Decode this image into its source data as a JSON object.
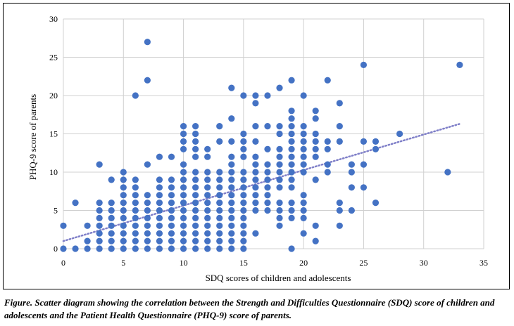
{
  "chart_data": {
    "type": "scatter",
    "xlabel": "SDQ scores of children and adolescents",
    "ylabel": "PHQ-9 score of parents",
    "xlim": [
      0,
      35
    ],
    "ylim": [
      0,
      30
    ],
    "xticks": [
      0,
      5,
      10,
      15,
      20,
      25,
      30,
      35
    ],
    "yticks": [
      0,
      5,
      10,
      15,
      20,
      25,
      30
    ],
    "grid": true,
    "legend": "none",
    "point_color": "#4472C4",
    "trendline": {
      "style": "dotted",
      "color": "#7F7FC8",
      "x": [
        0,
        33
      ],
      "y": [
        1.0,
        16.3
      ]
    },
    "series": [
      {
        "points": [
          [
            0,
            0
          ],
          [
            0,
            3
          ],
          [
            1,
            0
          ],
          [
            1,
            6
          ],
          [
            2,
            0
          ],
          [
            2,
            1
          ],
          [
            2,
            3
          ],
          [
            3,
            0
          ],
          [
            3,
            1
          ],
          [
            3,
            2
          ],
          [
            3,
            3
          ],
          [
            3,
            4
          ],
          [
            3,
            5
          ],
          [
            3,
            6
          ],
          [
            3,
            11
          ],
          [
            4,
            0
          ],
          [
            4,
            1
          ],
          [
            4,
            2
          ],
          [
            4,
            3
          ],
          [
            4,
            4
          ],
          [
            4,
            5
          ],
          [
            4,
            6
          ],
          [
            4,
            9
          ],
          [
            5,
            0
          ],
          [
            5,
            1
          ],
          [
            5,
            2
          ],
          [
            5,
            3
          ],
          [
            5,
            4
          ],
          [
            5,
            5
          ],
          [
            5,
            6
          ],
          [
            5,
            7
          ],
          [
            5,
            8
          ],
          [
            5,
            9
          ],
          [
            5,
            10
          ],
          [
            6,
            0
          ],
          [
            6,
            1
          ],
          [
            6,
            2
          ],
          [
            6,
            3
          ],
          [
            6,
            4
          ],
          [
            6,
            5
          ],
          [
            6,
            6
          ],
          [
            6,
            7
          ],
          [
            6,
            8
          ],
          [
            6,
            9
          ],
          [
            6,
            20
          ],
          [
            7,
            0
          ],
          [
            7,
            1
          ],
          [
            7,
            2
          ],
          [
            7,
            3
          ],
          [
            7,
            4
          ],
          [
            7,
            5
          ],
          [
            7,
            6
          ],
          [
            7,
            7
          ],
          [
            7,
            11
          ],
          [
            7,
            22
          ],
          [
            7,
            27
          ],
          [
            8,
            0
          ],
          [
            8,
            1
          ],
          [
            8,
            2
          ],
          [
            8,
            3
          ],
          [
            8,
            4
          ],
          [
            8,
            5
          ],
          [
            8,
            6
          ],
          [
            8,
            7
          ],
          [
            8,
            8
          ],
          [
            8,
            9
          ],
          [
            8,
            12
          ],
          [
            9,
            0
          ],
          [
            9,
            1
          ],
          [
            9,
            2
          ],
          [
            9,
            3
          ],
          [
            9,
            4
          ],
          [
            9,
            5
          ],
          [
            9,
            6
          ],
          [
            9,
            7
          ],
          [
            9,
            8
          ],
          [
            9,
            9
          ],
          [
            9,
            12
          ],
          [
            10,
            0
          ],
          [
            10,
            1
          ],
          [
            10,
            2
          ],
          [
            10,
            3
          ],
          [
            10,
            4
          ],
          [
            10,
            5
          ],
          [
            10,
            6
          ],
          [
            10,
            7
          ],
          [
            10,
            8
          ],
          [
            10,
            9
          ],
          [
            10,
            10
          ],
          [
            10,
            11
          ],
          [
            10,
            13
          ],
          [
            10,
            14
          ],
          [
            10,
            15
          ],
          [
            10,
            16
          ],
          [
            11,
            0
          ],
          [
            11,
            1
          ],
          [
            11,
            2
          ],
          [
            11,
            3
          ],
          [
            11,
            4
          ],
          [
            11,
            5
          ],
          [
            11,
            6
          ],
          [
            11,
            7
          ],
          [
            11,
            8
          ],
          [
            11,
            9
          ],
          [
            11,
            10
          ],
          [
            11,
            12
          ],
          [
            11,
            13
          ],
          [
            11,
            14
          ],
          [
            11,
            15
          ],
          [
            11,
            16
          ],
          [
            12,
            0
          ],
          [
            12,
            1
          ],
          [
            12,
            2
          ],
          [
            12,
            3
          ],
          [
            12,
            4
          ],
          [
            12,
            5
          ],
          [
            12,
            6
          ],
          [
            12,
            7
          ],
          [
            12,
            8
          ],
          [
            12,
            9
          ],
          [
            12,
            10
          ],
          [
            12,
            12
          ],
          [
            12,
            13
          ],
          [
            13,
            0
          ],
          [
            13,
            1
          ],
          [
            13,
            2
          ],
          [
            13,
            3
          ],
          [
            13,
            4
          ],
          [
            13,
            5
          ],
          [
            13,
            6
          ],
          [
            13,
            7
          ],
          [
            13,
            8
          ],
          [
            13,
            9
          ],
          [
            13,
            10
          ],
          [
            13,
            14
          ],
          [
            13,
            16
          ],
          [
            14,
            0
          ],
          [
            14,
            1
          ],
          [
            14,
            2
          ],
          [
            14,
            3
          ],
          [
            14,
            4
          ],
          [
            14,
            5
          ],
          [
            14,
            6
          ],
          [
            14,
            7
          ],
          [
            14,
            8
          ],
          [
            14,
            9
          ],
          [
            14,
            10
          ],
          [
            14,
            11
          ],
          [
            14,
            12
          ],
          [
            14,
            14
          ],
          [
            14,
            17
          ],
          [
            14,
            21
          ],
          [
            15,
            0
          ],
          [
            15,
            1
          ],
          [
            15,
            2
          ],
          [
            15,
            3
          ],
          [
            15,
            4
          ],
          [
            15,
            5
          ],
          [
            15,
            6
          ],
          [
            15,
            7
          ],
          [
            15,
            8
          ],
          [
            15,
            9
          ],
          [
            15,
            10
          ],
          [
            15,
            12
          ],
          [
            15,
            13
          ],
          [
            15,
            14
          ],
          [
            15,
            15
          ],
          [
            15,
            20
          ],
          [
            16,
            2
          ],
          [
            16,
            5
          ],
          [
            16,
            6
          ],
          [
            16,
            7
          ],
          [
            16,
            8
          ],
          [
            16,
            9
          ],
          [
            16,
            10
          ],
          [
            16,
            11
          ],
          [
            16,
            12
          ],
          [
            16,
            14
          ],
          [
            16,
            16
          ],
          [
            16,
            19
          ],
          [
            16,
            20
          ],
          [
            17,
            5
          ],
          [
            17,
            6
          ],
          [
            17,
            7
          ],
          [
            17,
            8
          ],
          [
            17,
            9
          ],
          [
            17,
            10
          ],
          [
            17,
            11
          ],
          [
            17,
            13
          ],
          [
            17,
            16
          ],
          [
            17,
            20
          ],
          [
            18,
            3
          ],
          [
            18,
            4
          ],
          [
            18,
            5
          ],
          [
            18,
            6
          ],
          [
            18,
            8
          ],
          [
            18,
            9
          ],
          [
            18,
            10
          ],
          [
            18,
            11
          ],
          [
            18,
            12
          ],
          [
            18,
            13
          ],
          [
            18,
            15
          ],
          [
            18,
            16
          ],
          [
            18,
            21
          ],
          [
            19,
            0
          ],
          [
            19,
            4
          ],
          [
            19,
            5
          ],
          [
            19,
            6
          ],
          [
            19,
            8
          ],
          [
            19,
            9
          ],
          [
            19,
            10
          ],
          [
            19,
            11
          ],
          [
            19,
            12
          ],
          [
            19,
            13
          ],
          [
            19,
            14
          ],
          [
            19,
            15
          ],
          [
            19,
            16
          ],
          [
            19,
            17
          ],
          [
            19,
            18
          ],
          [
            19,
            22
          ],
          [
            20,
            2
          ],
          [
            20,
            4
          ],
          [
            20,
            5
          ],
          [
            20,
            6
          ],
          [
            20,
            7
          ],
          [
            20,
            10
          ],
          [
            20,
            11
          ],
          [
            20,
            12
          ],
          [
            20,
            13
          ],
          [
            20,
            14
          ],
          [
            20,
            15
          ],
          [
            20,
            16
          ],
          [
            20,
            20
          ],
          [
            21,
            1
          ],
          [
            21,
            3
          ],
          [
            21,
            9
          ],
          [
            21,
            12
          ],
          [
            21,
            13
          ],
          [
            21,
            14
          ],
          [
            21,
            15
          ],
          [
            21,
            17
          ],
          [
            21,
            18
          ],
          [
            22,
            10
          ],
          [
            22,
            11
          ],
          [
            22,
            13
          ],
          [
            22,
            14
          ],
          [
            22,
            22
          ],
          [
            23,
            3
          ],
          [
            23,
            5
          ],
          [
            23,
            6
          ],
          [
            23,
            14
          ],
          [
            23,
            16
          ],
          [
            23,
            19
          ],
          [
            24,
            5
          ],
          [
            24,
            8
          ],
          [
            24,
            10
          ],
          [
            24,
            11
          ],
          [
            25,
            8
          ],
          [
            25,
            11
          ],
          [
            25,
            14
          ],
          [
            25,
            24
          ],
          [
            26,
            6
          ],
          [
            26,
            13
          ],
          [
            26,
            14
          ],
          [
            28,
            15
          ],
          [
            32,
            10
          ],
          [
            33,
            24
          ]
        ]
      }
    ]
  },
  "caption": "Figure.  Scatter diagram showing the correlation between the Strength and Difficulties Questionnaire (SDQ) score of children and adolescents and the Patient Health Questionnaire (PHQ-9) score of parents."
}
